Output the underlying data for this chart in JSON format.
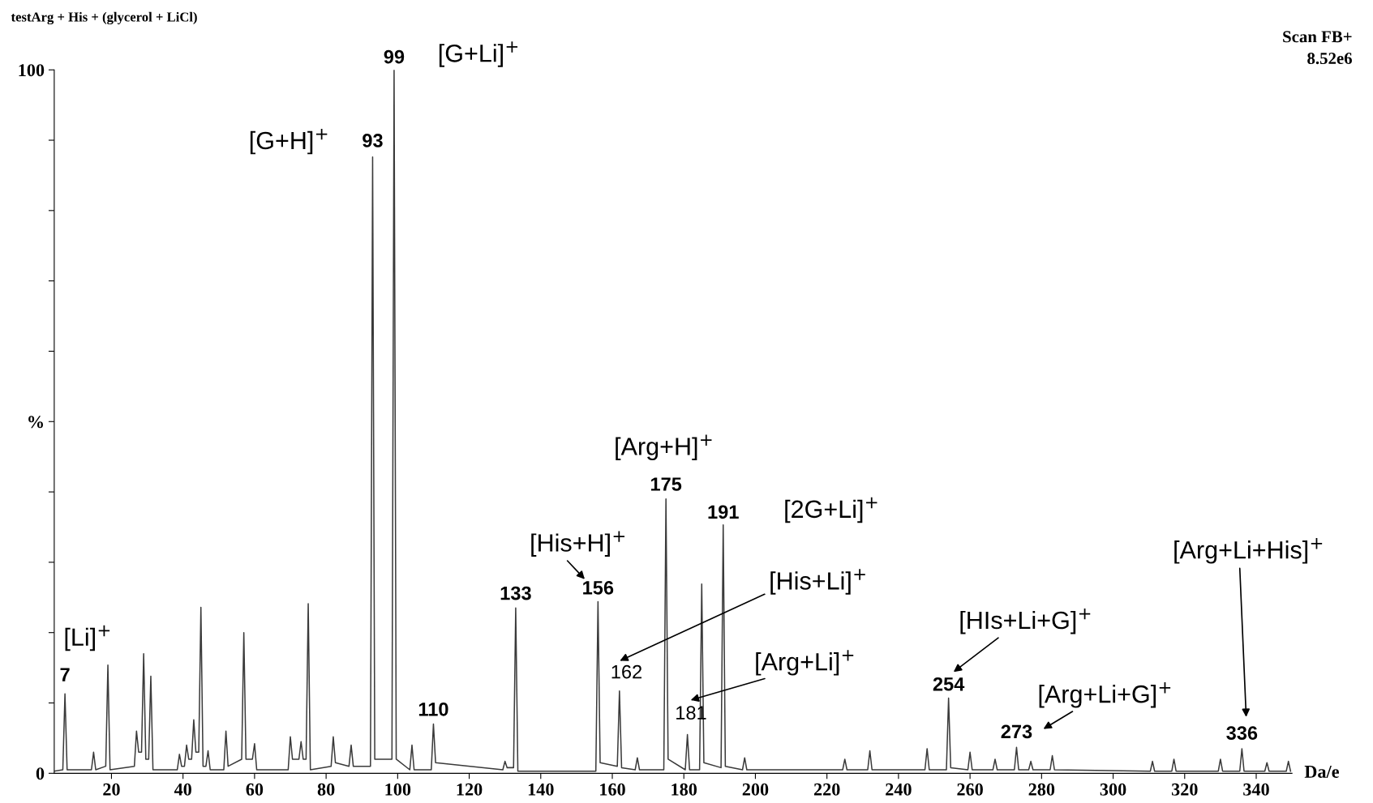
{
  "chart_data": {
    "type": "line",
    "title": "testArg + His + (glycerol + LiCl)",
    "xlabel": "Da/e",
    "x": [
      4,
      6.4,
      7,
      7.6,
      14.4,
      15,
      15.6,
      18.4,
      19,
      19.6,
      26.4,
      27,
      27.6,
      28.4,
      29,
      29.6,
      30.4,
      31,
      31.6,
      38.4,
      39,
      39.6,
      40.4,
      41,
      41.6,
      42.4,
      43,
      43.6,
      44.4,
      45,
      45.6,
      46.4,
      47,
      47.6,
      51.4,
      52,
      52.6,
      56.4,
      57,
      57.6,
      59.4,
      60,
      60.6,
      69.4,
      70,
      70.6,
      72.4,
      73,
      73.6,
      74.4,
      75,
      75.6,
      81.4,
      82,
      82.6,
      86.4,
      87,
      87.6,
      92.4,
      93,
      93.6,
      98.4,
      99,
      99.6,
      103.4,
      104,
      104.6,
      109.4,
      110,
      110.6,
      129.4,
      130,
      130.6,
      132.4,
      133,
      133.6,
      155.4,
      156,
      156.6,
      161.4,
      162,
      162.6,
      166.4,
      167,
      167.6,
      174.4,
      175,
      175.6,
      180.4,
      181,
      181.6,
      184.4,
      185,
      185.6,
      190.4,
      191,
      191.6,
      196.4,
      197,
      197.6,
      224.4,
      225,
      225.6,
      231.4,
      232,
      232.6,
      247.4,
      248,
      248.6,
      253.4,
      254,
      254.6,
      259.4,
      260,
      260.6,
      266.4,
      267,
      267.6,
      272.4,
      273,
      273.6,
      276.4,
      277,
      277.6,
      282.4,
      283,
      283.6,
      310.4,
      311,
      311.6,
      316.4,
      317,
      317.6,
      329.4,
      330,
      330.6,
      335.4,
      336,
      336.6,
      342.4,
      343,
      343.6,
      348.4,
      349,
      349.6
    ],
    "values": [
      0.3,
      0.5,
      11.3,
      0.5,
      0.5,
      3,
      0.5,
      1,
      15.4,
      0.5,
      1,
      6,
      3,
      3,
      17,
      2,
      2,
      13.8,
      0.5,
      0.5,
      2.7,
      1,
      1,
      4,
      2,
      2,
      7.6,
      3,
      3,
      23.6,
      1,
      1,
      3.2,
      0.5,
      0.5,
      6,
      1,
      2,
      20,
      2,
      2,
      4.2,
      0.5,
      0.5,
      5.2,
      2,
      2,
      4.5,
      2,
      2,
      24.1,
      0.5,
      1,
      5.2,
      1.5,
      1,
      4,
      1,
      1,
      87.6,
      2,
      2,
      100,
      2,
      0.5,
      4,
      0.5,
      0.5,
      7,
      1.5,
      0.5,
      1.7,
      0.8,
      0.8,
      23.5,
      0.3,
      0.3,
      24.4,
      1.5,
      1,
      11.7,
      0.8,
      0.5,
      2.2,
      0.5,
      0.5,
      39,
      2,
      0.5,
      5.5,
      0.5,
      0.5,
      26.9,
      1.5,
      0.8,
      35.3,
      1,
      0.5,
      2.2,
      0.5,
      0.5,
      2,
      0.5,
      0.5,
      3.2,
      0.5,
      0.5,
      3.5,
      0.5,
      0.5,
      10.7,
      0.8,
      0.5,
      3,
      0.5,
      0.5,
      2,
      0.5,
      0.5,
      3.7,
      0.5,
      0.5,
      1.7,
      0.5,
      0.5,
      2.5,
      0.5,
      0.3,
      1.7,
      0.3,
      0.3,
      2,
      0.3,
      0.3,
      2,
      0.3,
      0.3,
      3.5,
      0.3,
      0.3,
      1.5,
      0.3,
      0.3,
      1.7,
      0.3
    ],
    "color": "#3a3a3a",
    "marker": "none",
    "line_style": "solid",
    "grid": false,
    "legend": false,
    "xlim": [
      4,
      350
    ],
    "xticks": [
      20,
      40,
      60,
      80,
      100,
      120,
      140,
      160,
      180,
      200,
      220,
      240,
      260,
      280,
      300,
      320,
      340
    ],
    "ylim": [
      0,
      100
    ],
    "yticks": [
      0,
      {
        "value": 10,
        "label": null
      },
      {
        "value": 20,
        "label": null
      },
      {
        "value": 30,
        "label": null
      },
      {
        "value": 40,
        "label": null
      },
      {
        "value": 50,
        "label": "%"
      },
      {
        "value": 60,
        "label": null
      },
      {
        "value": 70,
        "label": null
      },
      {
        "value": 80,
        "label": null
      },
      {
        "value": 90,
        "label": null
      },
      100
    ],
    "annotations": [
      {
        "text": "7",
        "x": 7,
        "y": 11.3
      },
      "[Li]$^{+}$",
      {
        "text": "93",
        "x": 93,
        "y": 87.6
      },
      "[G+H]$^{+}$",
      {
        "text": "99",
        "x": 99,
        "y": 100
      },
      "[G+Li]$^{+}$",
      {
        "text": "110",
        "x": 110,
        "y": 7
      },
      {
        "text": "133",
        "x": 133,
        "y": 23.5
      },
      {
        "text": "156",
        "x": 156,
        "y": 24.4
      },
      "[His+H]$^{+}$",
      {
        "text": "162",
        "x": 162,
        "y": 11.7
      },
      "[His+Li]$^{+}$",
      {
        "text": "175",
        "x": 175,
        "y": 39
      },
      "[Arg+H]$^{+}$",
      {
        "text": "181",
        "x": 181,
        "y": 5.5
      },
      "[Arg+Li]$^{+}$",
      {
        "text": "191",
        "x": 191,
        "y": 35.3
      },
      "[2G+Li]$^{+}$",
      {
        "text": "254",
        "x": 254,
        "y": 10.7
      },
      "[HIs+Li+G]$^{+}$",
      {
        "text": "273",
        "x": 273,
        "y": 3.7
      },
      "[Arg+Li+G]$^{+}$",
      {
        "text": "336",
        "x": 336,
        "y": 3.5
      },
      "[Arg+Li+His]$^{+}$",
      "Scan FB+",
      "8.52e6"
    ]
  }
}
